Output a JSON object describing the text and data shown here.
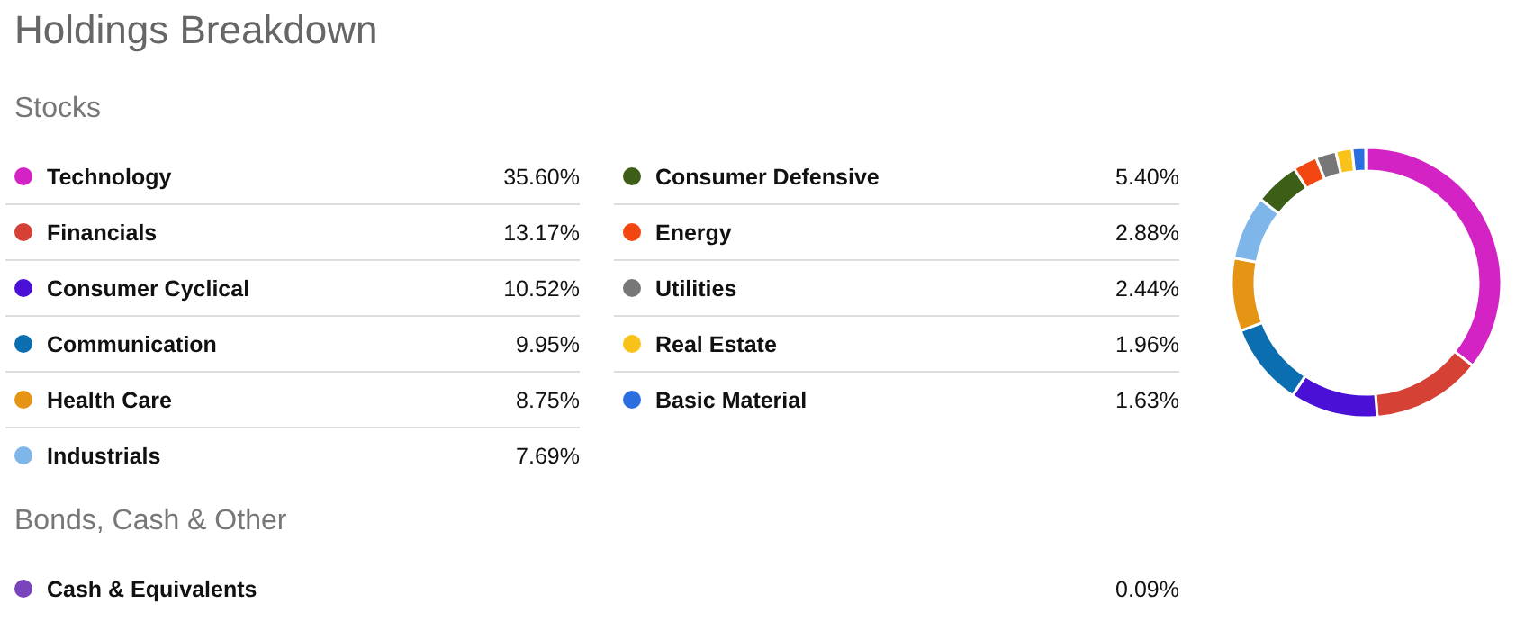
{
  "chart_data": {
    "type": "donut",
    "title": "Holdings Breakdown",
    "annotations": [
      "Stocks",
      "Bonds, Cash & Other"
    ],
    "categories": [
      "Technology",
      "Financials",
      "Consumer Cyclical",
      "Communication",
      "Health Care",
      "Industrials",
      "Consumer Defensive",
      "Energy",
      "Utilities",
      "Real Estate",
      "Basic Material",
      "Cash & Equivalents"
    ],
    "values": [
      35.6,
      13.17,
      10.52,
      9.95,
      8.75,
      7.69,
      5.4,
      2.88,
      2.44,
      1.96,
      1.63,
      0.09
    ],
    "value_labels": [
      "35.60%",
      "13.17%",
      "10.52%",
      "9.95%",
      "8.75%",
      "7.69%",
      "5.40%",
      "2.88%",
      "2.44%",
      "1.96%",
      "1.63%",
      "0.09%"
    ],
    "colors": [
      "#d423c4",
      "#d64135",
      "#4a10d6",
      "#0b6eb0",
      "#e59413",
      "#7eb6ea",
      "#3d5e16",
      "#f24710",
      "#777777",
      "#f8c21a",
      "#2a6ee0",
      "#7a44bd"
    ],
    "legend": "left"
  }
}
